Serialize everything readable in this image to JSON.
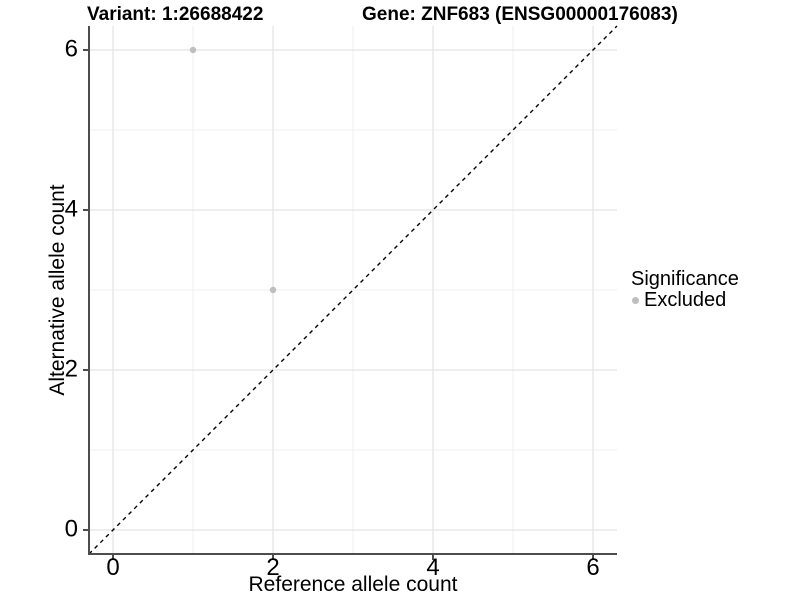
{
  "figure": {
    "title_variant": "Variant: 1:26688422",
    "title_gene": "Gene: ZNF683 (ENSG00000176083)"
  },
  "chart_data": {
    "type": "scatter",
    "title": "Variant: 1:26688422   Gene: ZNF683 (ENSG00000176083)",
    "xlabel": "Reference allele count",
    "ylabel": "Alternative allele count",
    "xlim": [
      -0.3,
      6.3
    ],
    "ylim": [
      -0.3,
      6.3
    ],
    "x_ticks": [
      "0",
      "2",
      "4",
      "6"
    ],
    "y_ticks": [
      "0",
      "2",
      "4",
      "6"
    ],
    "x_tick_values": [
      0,
      2,
      4,
      6
    ],
    "y_tick_values": [
      0,
      2,
      4,
      6
    ],
    "x_minor_tick_values": [
      1,
      3,
      5
    ],
    "y_minor_tick_values": [
      1,
      3,
      5
    ],
    "grid": "major+minor",
    "identity_line": {
      "style": "dashed",
      "color": "#000000",
      "equation": "y = x"
    },
    "series": [
      {
        "name": "Excluded",
        "color": "#bebebe",
        "points": [
          {
            "x": 1,
            "y": 6
          },
          {
            "x": 2,
            "y": 3
          }
        ]
      }
    ],
    "legend": {
      "title": "Significance",
      "position": "right",
      "items": [
        {
          "label": "Excluded",
          "color": "#bebebe"
        }
      ]
    }
  },
  "style_colors": {
    "axis_line": "#4d4d4d",
    "grid_major": "#e3e3e3",
    "grid_minor": "#efefef",
    "point": "#bebebe",
    "background": "#ffffff"
  }
}
